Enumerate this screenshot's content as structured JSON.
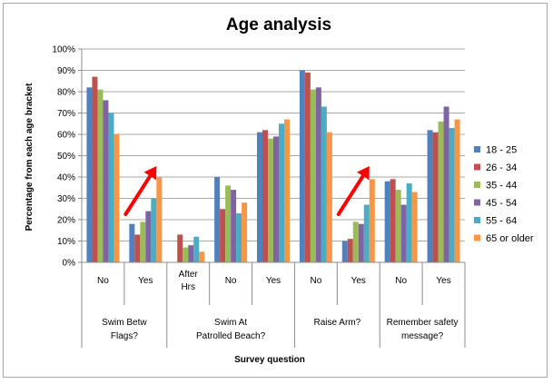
{
  "chart_data": {
    "type": "bar",
    "title": "Age analysis",
    "xlabel": "Survey question",
    "ylabel": "Percentage from each age bracket",
    "ylim": [
      0,
      1
    ],
    "yticks": [
      "0%",
      "10%",
      "20%",
      "30%",
      "40%",
      "50%",
      "60%",
      "70%",
      "80%",
      "90%",
      "100%"
    ],
    "grid": true,
    "legend_position": "right",
    "categories": [
      "No",
      "Yes",
      "After Hrs",
      "No",
      "Yes",
      "No",
      "Yes",
      "No",
      "Yes"
    ],
    "category_groups": [
      {
        "label": "Swim Betw Flags?",
        "span": 2
      },
      {
        "label": "Swim At Patrolled Beach?",
        "span": 3
      },
      {
        "label": "Raise Arm?",
        "span": 2
      },
      {
        "label": "Remember safety message?",
        "span": 2
      }
    ],
    "series": [
      {
        "name": "18 - 25",
        "color": "#4f81bd",
        "values": [
          0.82,
          0.18,
          0.0,
          0.4,
          0.61,
          0.9,
          0.1,
          0.38,
          0.62
        ]
      },
      {
        "name": "26 - 34",
        "color": "#c0504d",
        "values": [
          0.87,
          0.13,
          0.13,
          0.25,
          0.62,
          0.89,
          0.11,
          0.39,
          0.61
        ]
      },
      {
        "name": "35 - 44",
        "color": "#9bbb59",
        "values": [
          0.81,
          0.19,
          0.07,
          0.36,
          0.58,
          0.81,
          0.19,
          0.34,
          0.66
        ]
      },
      {
        "name": "45 - 54",
        "color": "#8064a2",
        "values": [
          0.76,
          0.24,
          0.08,
          0.34,
          0.59,
          0.82,
          0.18,
          0.27,
          0.73
        ]
      },
      {
        "name": "55 - 64",
        "color": "#4bacc6",
        "values": [
          0.7,
          0.3,
          0.12,
          0.23,
          0.65,
          0.73,
          0.27,
          0.37,
          0.63
        ]
      },
      {
        "name": "65 or older",
        "color": "#f79646",
        "values": [
          0.6,
          0.4,
          0.05,
          0.28,
          0.67,
          0.61,
          0.39,
          0.33,
          0.67
        ]
      }
    ],
    "annotations": [
      {
        "type": "arrow",
        "color": "#ff0000",
        "near_category": 1
      },
      {
        "type": "arrow",
        "color": "#ff0000",
        "near_category": 6
      }
    ]
  }
}
